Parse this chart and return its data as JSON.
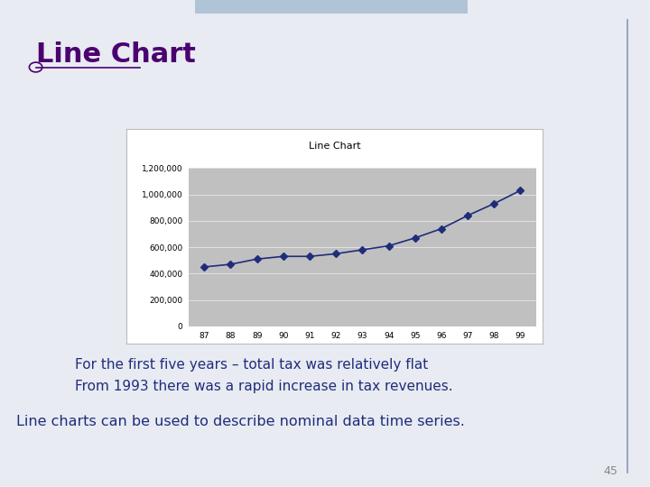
{
  "chart_title": "Line Chart",
  "years": [
    87,
    88,
    89,
    90,
    91,
    92,
    93,
    94,
    95,
    96,
    97,
    98,
    99
  ],
  "values": [
    450000,
    470000,
    510000,
    530000,
    530000,
    550000,
    580000,
    610000,
    670000,
    740000,
    840000,
    930000,
    1030000
  ],
  "line_color": "#1F2D7B",
  "marker": "D",
  "marker_color": "#1F2D7B",
  "plot_bg_color": "#C0C0C0",
  "outer_bg_color": "#FFFFFF",
  "slide_bg_color": "#E8EBF2",
  "ylim": [
    0,
    1200000
  ],
  "yticks": [
    0,
    200000,
    400000,
    600000,
    800000,
    1000000,
    1200000
  ],
  "text1": "For the first five years – total tax was relatively flat",
  "text2": "From 1993 there was a rapid increase in tax revenues.",
  "text3": "Line charts can be used to describe nominal data time series.",
  "slide_title": "Line Chart",
  "page_num": "45",
  "title_color": "#4B0070",
  "body_text_color": "#1F2D7B",
  "page_num_color": "#888888",
  "top_banner_color": "#B0C4D8",
  "right_border_color": "#8899BB",
  "grid_color": "#AAAAAA",
  "outer_border_color": "#BBBBBB"
}
